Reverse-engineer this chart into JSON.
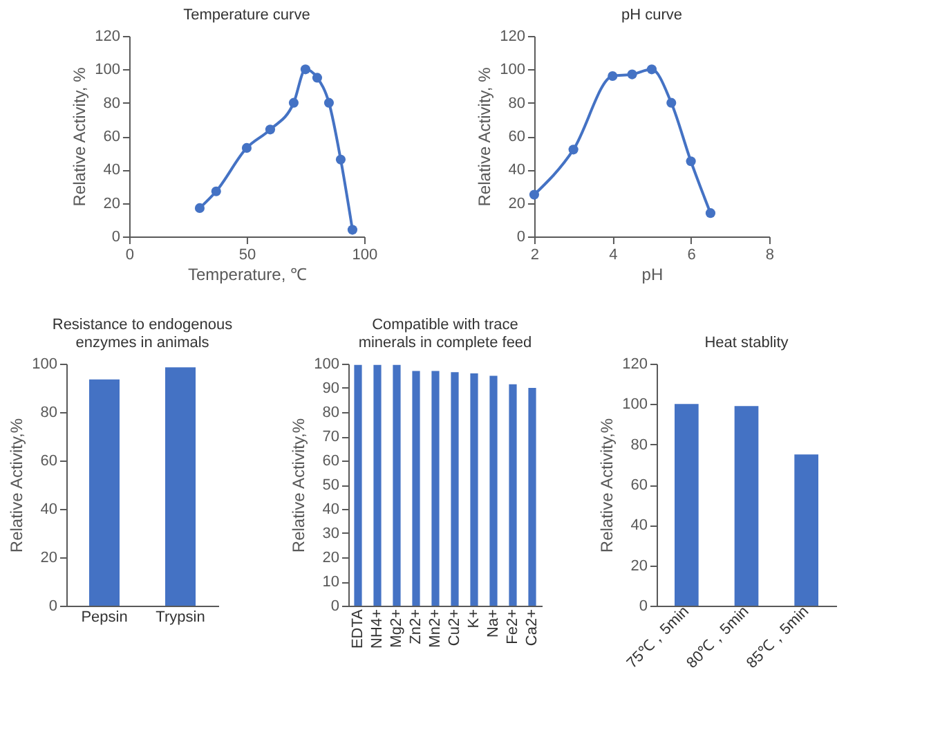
{
  "chart_data": [
    {
      "type": "line",
      "title": "Temperature curve",
      "xlabel": "Temperature, ℃",
      "ylabel": "Relative Activity, %",
      "x": [
        30,
        37,
        50,
        60,
        70,
        75,
        80,
        85,
        90,
        95
      ],
      "series": [
        {
          "color": "#4472c4",
          "values": [
            17,
            27,
            53,
            64,
            80,
            100,
            95,
            80,
            46,
            4
          ]
        }
      ],
      "xlim": [
        0,
        100
      ],
      "xticks": [
        0,
        50,
        100
      ],
      "ylim": [
        0,
        120
      ],
      "yticks": [
        0,
        20,
        40,
        60,
        80,
        100,
        120
      ],
      "marker": "circle",
      "line_style": "solid",
      "grid": false
    },
    {
      "type": "line",
      "title": "pH curve",
      "xlabel": "pH",
      "ylabel": "Relative Activity, %",
      "x": [
        2,
        3,
        4,
        4.5,
        5,
        5.5,
        6,
        6.5
      ],
      "series": [
        {
          "color": "#4472c4",
          "values": [
            25,
            52,
            96,
            97,
            100,
            80,
            45,
            14
          ]
        }
      ],
      "xlim": [
        2,
        8
      ],
      "xticks": [
        2,
        4,
        6,
        8
      ],
      "ylim": [
        0,
        120
      ],
      "yticks": [
        0,
        20,
        40,
        60,
        80,
        100,
        120
      ],
      "marker": "circle",
      "line_style": "solid",
      "grid": false
    },
    {
      "type": "bar",
      "title": "Resistance to endogenous enzymes in animals",
      "ylabel": "Relative Activity,%",
      "categories": [
        "Pepsin",
        "Trypsin"
      ],
      "series": [
        {
          "color": "#4472c4",
          "values": [
            93.5,
            98.5
          ]
        }
      ],
      "ylim": [
        0,
        100
      ],
      "yticks": [
        0,
        20,
        40,
        60,
        80,
        100
      ],
      "grid": false
    },
    {
      "type": "bar",
      "title": "Compatible with trace minerals in complete feed",
      "ylabel": "Relative Activity,%",
      "categories": [
        "EDTA",
        "NH4+",
        "Mg2+",
        "Zn2+",
        "Mn2+",
        "Cu2+",
        "K+",
        "Na+",
        "Fe2+",
        "Ca2+"
      ],
      "series": [
        {
          "color": "#4472c4",
          "values": [
            99.5,
            99.5,
            99.5,
            97,
            97,
            96.5,
            96,
            95,
            91.5,
            90
          ]
        }
      ],
      "ylim": [
        0,
        100
      ],
      "yticks": [
        0,
        10,
        20,
        30,
        40,
        50,
        60,
        70,
        80,
        90,
        100
      ],
      "grid": false
    },
    {
      "type": "bar",
      "title": "Heat stablity",
      "ylabel": "Relative Activity,%",
      "categories": [
        "75℃，5min",
        "80℃，5min",
        "85℃，5min"
      ],
      "series": [
        {
          "color": "#4472c4",
          "values": [
            100,
            99,
            75
          ]
        }
      ],
      "ylim": [
        0,
        120
      ],
      "yticks": [
        0,
        20,
        40,
        60,
        80,
        100,
        120
      ],
      "grid": false
    }
  ]
}
